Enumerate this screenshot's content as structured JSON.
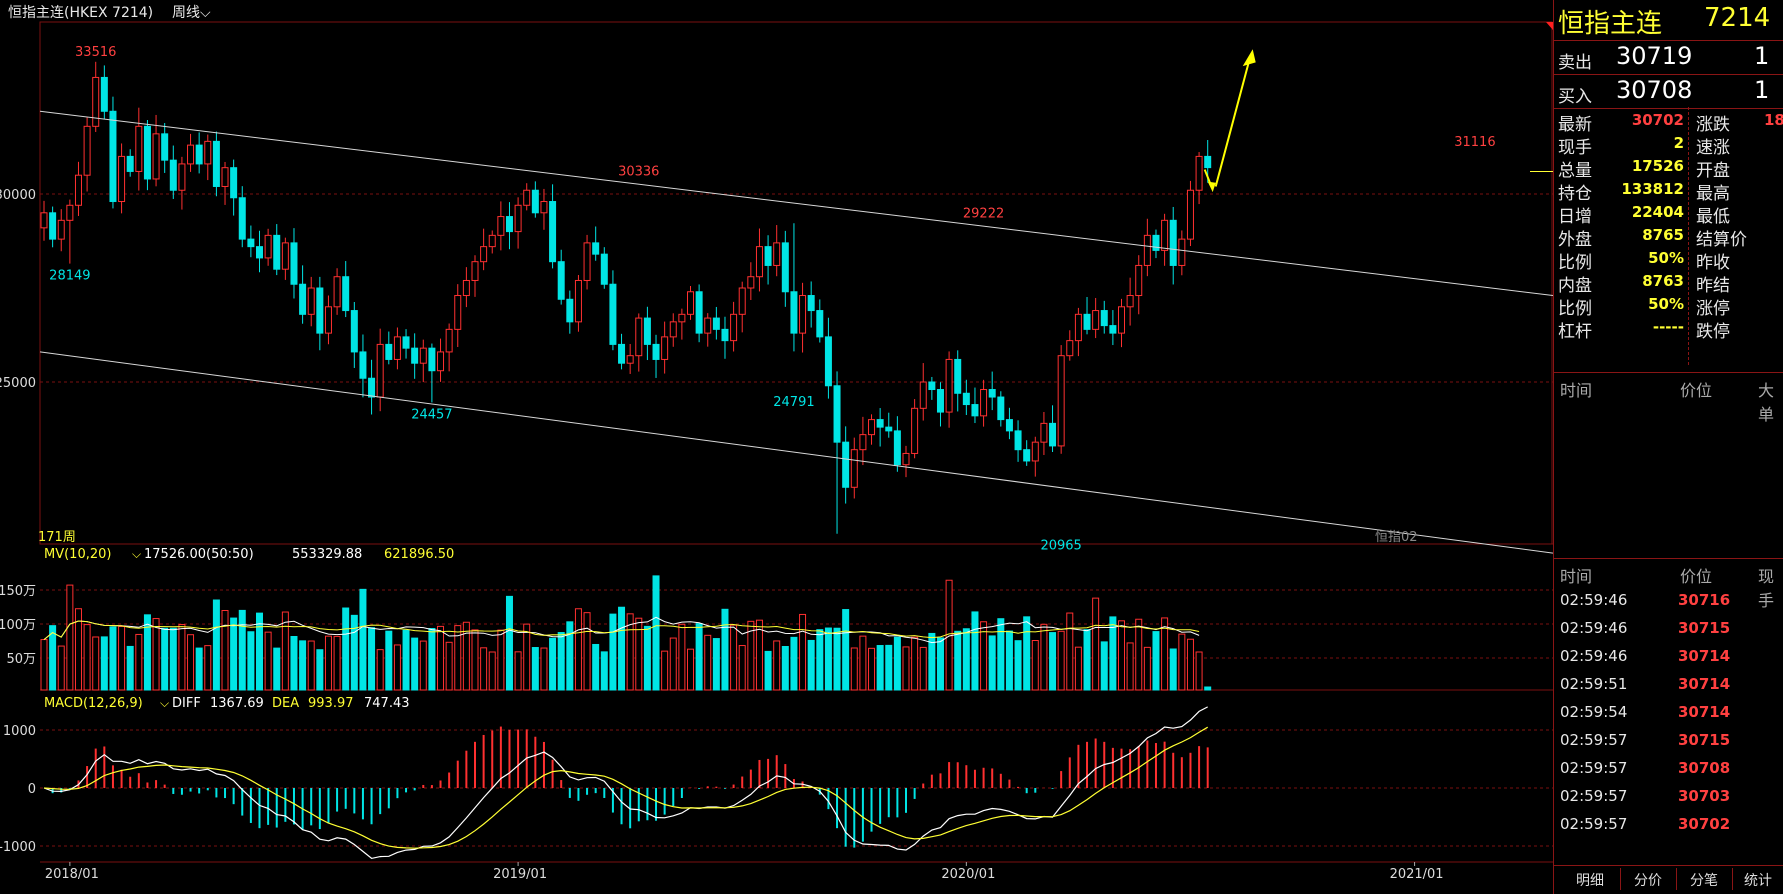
{
  "header": {
    "title": "恒指主连(HKEX 7214)",
    "period": "周线"
  },
  "colors": {
    "up": "#ff3030",
    "down": "#00e5e5",
    "bg": "#000000",
    "grid": "#7a1010",
    "label": "#ffff33",
    "arrow": "#ffff00"
  },
  "chart_data": {
    "type": "candlestick",
    "x_ticks": [
      "2018/01",
      "2019/01",
      "2020/01",
      "2021/01"
    ],
    "y_ticks": [
      "30000",
      "25000"
    ],
    "ylim": [
      20500,
      34000
    ],
    "bar_count_label": "171周",
    "watermark": "恒指02",
    "price_labels": [
      {
        "text": "33516",
        "date": "2018-01-26",
        "price": 33516,
        "pos": "above"
      },
      {
        "text": "28149",
        "date": "2018-01-05",
        "price": 28149,
        "pos": "below"
      },
      {
        "text": "30336",
        "date": "2019-04-12",
        "price": 30336,
        "pos": "above"
      },
      {
        "text": "24457",
        "date": "2018-10-26",
        "price": 24457,
        "pos": "below"
      },
      {
        "text": "24791",
        "date": "2019-08-16",
        "price": 24791,
        "pos": "below"
      },
      {
        "text": "29222",
        "date": "2020-01-17",
        "price": 29222,
        "pos": "above"
      },
      {
        "text": "20965",
        "date": "2020-03-20",
        "price": 20965,
        "pos": "below"
      },
      {
        "text": "31116",
        "date": "2021-02-19",
        "price": 31116,
        "pos": "above"
      }
    ],
    "trend_lines": [
      {
        "from": [
          "2017-12-15",
          32200
        ],
        "to": [
          "2021-03-26",
          27300
        ]
      },
      {
        "from": [
          "2017-12-15",
          25800
        ],
        "to": [
          "2021-03-26",
          20450
        ]
      }
    ],
    "closes": [
      29500,
      28800,
      29300,
      29700,
      30500,
      31800,
      33100,
      32200,
      29800,
      31000,
      30600,
      31800,
      30400,
      31600,
      30900,
      30100,
      30800,
      31300,
      30800,
      31400,
      30200,
      30700,
      29900,
      28800,
      28600,
      28300,
      28900,
      28000,
      28700,
      27600,
      26800,
      27500,
      26300,
      27000,
      27800,
      26900,
      25800,
      25100,
      24600,
      26000,
      25600,
      26200,
      25900,
      25500,
      25900,
      25300,
      25800,
      26400,
      27300,
      27700,
      28200,
      28600,
      28900,
      29400,
      29000,
      29700,
      30100,
      29500,
      29800,
      28200,
      27200,
      26600,
      27700,
      28700,
      28400,
      27600,
      26000,
      25500,
      25700,
      26700,
      26000,
      25600,
      26200,
      26600,
      26800,
      27400,
      26300,
      26700,
      26400,
      26100,
      26800,
      27500,
      27800,
      28600,
      28100,
      28700,
      27400,
      26300,
      27300,
      26900,
      26200,
      24900,
      23400,
      22200,
      23200,
      23600,
      24000,
      23800,
      23700,
      22800,
      23100,
      24300,
      25000,
      24800,
      24200,
      25600,
      24700,
      24400,
      24100,
      24800,
      24600,
      24000,
      23700,
      23200,
      22900,
      23400,
      23900,
      23300,
      25700,
      26100,
      26800,
      26400,
      26900,
      26500,
      26300,
      27000,
      27300,
      28100,
      28900,
      28500,
      29300,
      28100,
      28800,
      30100,
      31000,
      30702
    ],
    "volume": {
      "title": "MV(10,20)",
      "values": [
        "17526.00(50:50)",
        "553329.88",
        "621896.50"
      ],
      "y_ticks": [
        "150万",
        "100万",
        "50万"
      ]
    },
    "macd": {
      "title": "MACD(12,26,9)",
      "diff_label": "DIFF",
      "diff": "1367.69",
      "dea_label": "DEA",
      "dea": "993.97",
      "macd": "747.43",
      "y_ticks": [
        "1000",
        "0",
        "-1000"
      ]
    }
  },
  "panel": {
    "name": "恒指主连",
    "code": "7214",
    "orderbook": [
      {
        "k": "卖出",
        "price": "30719",
        "qty": "1"
      },
      {
        "k": "买入",
        "price": "30708",
        "qty": "1"
      }
    ],
    "stats": [
      {
        "k": "最新",
        "v": "30702",
        "color": "#ff4040",
        "k2": "涨跌",
        "v2": "18"
      },
      {
        "k": "现手",
        "v": "2",
        "color": "#ffff33",
        "k2": "速涨",
        "v2": ""
      },
      {
        "k": "总量",
        "v": "17526",
        "color": "#ffff33",
        "k2": "开盘",
        "v2": ""
      },
      {
        "k": "持仓",
        "v": "133812",
        "color": "#ffff33",
        "k2": "最高",
        "v2": ""
      },
      {
        "k": "日增",
        "v": "22404",
        "color": "#ffff33",
        "k2": "最低",
        "v2": ""
      },
      {
        "k": "外盘",
        "v": "8765",
        "color": "#ffff33",
        "k2": "结算价",
        "v2": ""
      },
      {
        "k": "比例",
        "v": "50%",
        "color": "#ffff33",
        "k2": "昨收",
        "v2": ""
      },
      {
        "k": "内盘",
        "v": "8763",
        "color": "#ffff33",
        "k2": "昨结",
        "v2": ""
      },
      {
        "k": "比例",
        "v": "50%",
        "color": "#ffff33",
        "k2": "涨停",
        "v2": ""
      },
      {
        "k": "杠杆",
        "v": "-----",
        "color": "#ffff33",
        "k2": "跌停",
        "v2": ""
      }
    ],
    "list1_header": {
      "time": "时间",
      "price": "价位",
      "vol": "大单"
    },
    "list2_header": {
      "time": "时间",
      "price": "价位",
      "vol": "现手"
    },
    "ticks": [
      {
        "time": "02:59:46",
        "price": "30716"
      },
      {
        "time": "02:59:46",
        "price": "30715"
      },
      {
        "time": "02:59:46",
        "price": "30714"
      },
      {
        "time": "02:59:51",
        "price": "30714"
      },
      {
        "time": "02:59:54",
        "price": "30714"
      },
      {
        "time": "02:59:57",
        "price": "30715"
      },
      {
        "time": "02:59:57",
        "price": "30708"
      },
      {
        "time": "02:59:57",
        "price": "30703"
      },
      {
        "time": "02:59:57",
        "price": "30702"
      }
    ],
    "tabs": [
      "明细",
      "分价",
      "分笔",
      "统计"
    ]
  }
}
